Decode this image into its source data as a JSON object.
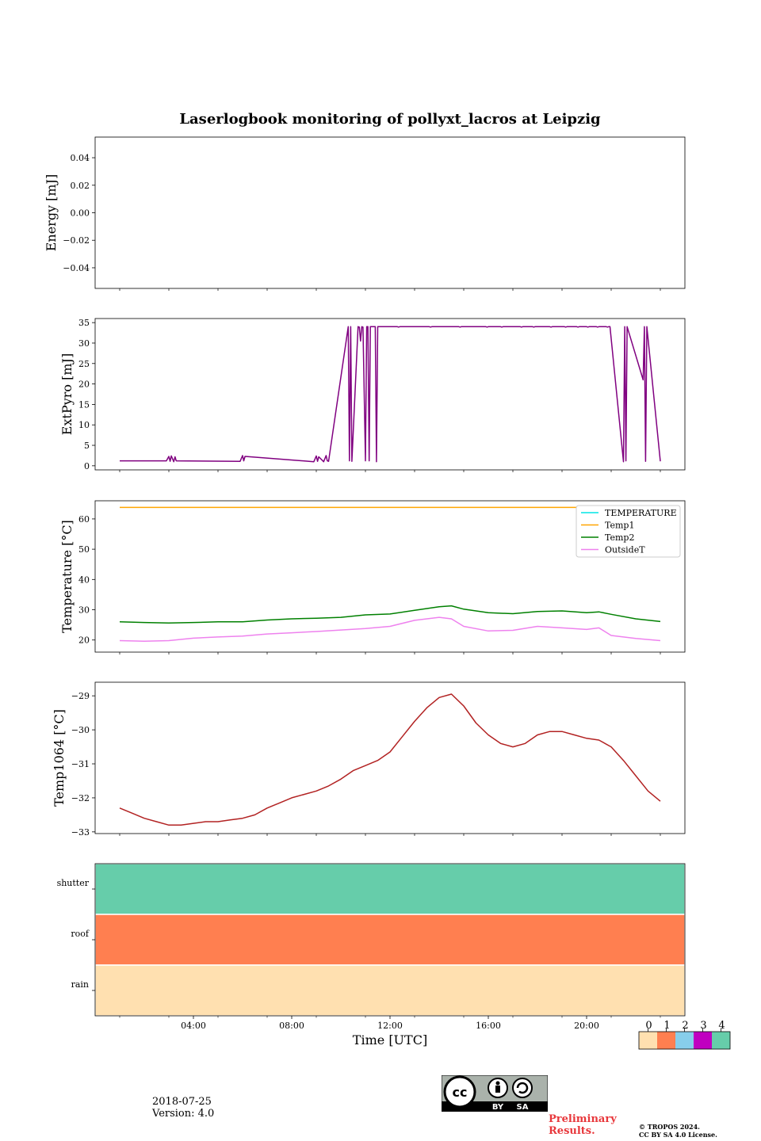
{
  "title": "Laserlogbook monitoring of pollyxt_lacros at Leipzig",
  "footer": {
    "date": "2018-07-25",
    "version": "Version: 4.0",
    "preliminary_line1": "Preliminary",
    "preliminary_line2": "Results.",
    "copyright_line1": "© TROPOS 2024.",
    "copyright_line2": "CC BY SA 4.0 License.",
    "cc_by": "BY",
    "cc_sa": "SA"
  },
  "chart_data": [
    {
      "type": "line",
      "ylabel": "Energy [mJ]",
      "ylim": [
        -0.055,
        0.055
      ],
      "yticks": [
        0.04,
        0.02,
        0.0,
        -0.02,
        -0.04
      ],
      "ytick_labels": [
        "0.04",
        "0.02",
        "0.00",
        "−0.02",
        "−0.04"
      ],
      "xlim": [
        0,
        24
      ],
      "series": []
    },
    {
      "type": "line",
      "ylabel": "ExtPyro [mJ]",
      "ylim": [
        -1,
        36
      ],
      "yticks": [
        35,
        30,
        25,
        20,
        15,
        10,
        5,
        0
      ],
      "ytick_labels": [
        "35",
        "30",
        "25",
        "20",
        "15",
        "10",
        "5",
        "0"
      ],
      "xlim": [
        0,
        24
      ],
      "series": [
        {
          "color": "#800080",
          "x": [
            1.0,
            2.9,
            3.0,
            3.05,
            3.1,
            3.2,
            3.25,
            3.3,
            5.9,
            6.0,
            6.05,
            6.1,
            8.9,
            9.0,
            9.05,
            9.1,
            9.3,
            9.4,
            9.45,
            9.5,
            10.3,
            10.35,
            10.4,
            10.45,
            10.7,
            10.75,
            10.8,
            10.85,
            10.9,
            11.0,
            11.05,
            11.1,
            11.15,
            11.2,
            11.25,
            11.4,
            11.45,
            11.5,
            11.55,
            12.3,
            12.35,
            12.4,
            12.45,
            13.6,
            13.65,
            13.7,
            13.75,
            14.8,
            14.85,
            14.9,
            14.95,
            15.9,
            15.95,
            16.0,
            16.05,
            16.5,
            16.55,
            16.6,
            16.65,
            17.3,
            17.35,
            17.4,
            17.45,
            17.8,
            17.85,
            17.9,
            17.95,
            18.5,
            18.55,
            18.6,
            18.65,
            19.1,
            19.15,
            19.2,
            19.25,
            19.6,
            19.65,
            19.7,
            19.75,
            20.0,
            20.05,
            20.1,
            20.15,
            20.4,
            20.45,
            20.5,
            20.55,
            20.8,
            20.85,
            20.9,
            20.95,
            21.5,
            21.55,
            21.6,
            21.65,
            22.3,
            22.35,
            22.4,
            22.45,
            23.0
          ],
          "y": [
            1.2,
            1.2,
            2.3,
            1.1,
            2.4,
            1.0,
            2.2,
            1.2,
            1.1,
            2.5,
            1.2,
            2.3,
            1.0,
            2.4,
            1.1,
            2.2,
            1.0,
            2.5,
            1.2,
            1.1,
            34.0,
            1.2,
            34.0,
            1.1,
            34.0,
            33.9,
            30.5,
            34.0,
            33.9,
            1.2,
            34.0,
            34.0,
            1.2,
            34.0,
            34.0,
            34.0,
            1.0,
            34.0,
            34.0,
            34.0,
            33.9,
            34.0,
            34.0,
            34.0,
            33.9,
            34.0,
            34.0,
            34.0,
            33.9,
            34.0,
            34.0,
            34.0,
            33.9,
            34.0,
            34.0,
            34.0,
            33.9,
            34.0,
            34.0,
            34.0,
            33.9,
            34.0,
            34.0,
            34.0,
            33.9,
            34.0,
            34.0,
            34.0,
            33.9,
            34.0,
            34.0,
            34.0,
            33.9,
            34.0,
            34.0,
            34.0,
            33.9,
            34.0,
            34.0,
            34.0,
            33.9,
            34.0,
            34.0,
            34.0,
            33.9,
            34.0,
            34.0,
            34.0,
            33.9,
            34.0,
            34.0,
            1.0,
            34.0,
            1.2,
            34.0,
            21.0,
            34.0,
            1.1,
            34.0,
            1.1
          ]
        }
      ]
    },
    {
      "type": "line",
      "ylabel": "Temperature [°C]",
      "ylim": [
        16,
        66
      ],
      "yticks": [
        60,
        50,
        40,
        30,
        20
      ],
      "ytick_labels": [
        "60",
        "50",
        "40",
        "30",
        "20"
      ],
      "xlim": [
        0,
        24
      ],
      "legend_position": "top-right",
      "series": [
        {
          "name": "TEMPERATURE",
          "color": "#00e5e5",
          "x": [],
          "y": []
        },
        {
          "name": "Temp1",
          "color": "#ffa500",
          "x": [
            1.0,
            23.0
          ],
          "y": [
            63.8,
            63.8
          ]
        },
        {
          "name": "Temp2",
          "color": "#008000",
          "x": [
            1.0,
            2.0,
            3.0,
            4.0,
            5.0,
            6.0,
            7.0,
            8.0,
            9.0,
            10.0,
            11.0,
            12.0,
            13.0,
            14.0,
            14.5,
            15.0,
            16.0,
            17.0,
            18.0,
            19.0,
            20.0,
            20.5,
            21.0,
            22.0,
            23.0
          ],
          "y": [
            26.0,
            25.8,
            25.6,
            25.8,
            26.0,
            26.0,
            26.6,
            27.0,
            27.2,
            27.5,
            28.3,
            28.6,
            29.8,
            31.0,
            31.3,
            30.2,
            29.0,
            28.7,
            29.4,
            29.6,
            29.0,
            29.3,
            28.5,
            27.0,
            26.1
          ]
        },
        {
          "name": "OutsideT",
          "color": "#ee82ee",
          "x": [
            1.0,
            2.0,
            3.0,
            4.0,
            5.0,
            6.0,
            7.0,
            8.0,
            9.0,
            10.0,
            11.0,
            12.0,
            13.0,
            14.0,
            14.5,
            15.0,
            16.0,
            17.0,
            18.0,
            19.0,
            20.0,
            20.5,
            21.0,
            22.0,
            23.0
          ],
          "y": [
            19.8,
            19.6,
            19.8,
            20.6,
            21.0,
            21.3,
            22.0,
            22.4,
            22.8,
            23.3,
            23.8,
            24.5,
            26.5,
            27.5,
            27.0,
            24.5,
            23.0,
            23.2,
            24.5,
            24.0,
            23.5,
            24.0,
            21.5,
            20.5,
            19.8
          ]
        }
      ]
    },
    {
      "type": "line",
      "ylabel": "Temp1064 [°C]",
      "ylim": [
        -33.05,
        -28.6
      ],
      "yticks": [
        -29,
        -30,
        -31,
        -32,
        -33
      ],
      "ytick_labels": [
        "−29",
        "−30",
        "−31",
        "−32",
        "−33"
      ],
      "xlim": [
        0,
        24
      ],
      "series": [
        {
          "color": "#b22222",
          "x": [
            1.0,
            1.5,
            2.0,
            2.5,
            3.0,
            3.5,
            4.0,
            4.5,
            5.0,
            5.5,
            6.0,
            6.5,
            7.0,
            7.5,
            8.0,
            8.5,
            9.0,
            9.5,
            10.0,
            10.5,
            11.0,
            11.5,
            12.0,
            12.5,
            13.0,
            13.5,
            14.0,
            14.5,
            15.0,
            15.5,
            16.0,
            16.5,
            17.0,
            17.5,
            18.0,
            18.5,
            19.0,
            19.5,
            20.0,
            20.5,
            21.0,
            21.5,
            22.0,
            22.5,
            23.0
          ],
          "y": [
            -32.3,
            -32.45,
            -32.6,
            -32.7,
            -32.8,
            -32.8,
            -32.75,
            -32.7,
            -32.7,
            -32.65,
            -32.6,
            -32.5,
            -32.3,
            -32.15,
            -32.0,
            -31.9,
            -31.8,
            -31.65,
            -31.45,
            -31.2,
            -31.05,
            -30.9,
            -30.65,
            -30.2,
            -29.75,
            -29.35,
            -29.05,
            -28.95,
            -29.3,
            -29.8,
            -30.15,
            -30.4,
            -30.5,
            -30.4,
            -30.15,
            -30.05,
            -30.05,
            -30.15,
            -30.25,
            -30.3,
            -30.5,
            -30.9,
            -31.35,
            -31.8,
            -32.1
          ]
        }
      ]
    },
    {
      "type": "heatmap",
      "rows": [
        "shutter",
        "roof",
        "rain"
      ],
      "row_values": [
        4,
        1,
        0
      ],
      "xlabel": "Time [UTC]",
      "xticks": [
        4,
        8,
        12,
        16,
        20
      ],
      "xtick_labels": [
        "04:00",
        "08:00",
        "12:00",
        "16:00",
        "20:00"
      ],
      "xlim": [
        0,
        24
      ],
      "colorbar": {
        "labels": [
          "0",
          "1",
          "2",
          "3",
          "4"
        ],
        "colors": [
          "#ffe0b0",
          "#ff7f50",
          "#87ceeb",
          "#c000c0",
          "#66cdaa"
        ]
      }
    }
  ]
}
